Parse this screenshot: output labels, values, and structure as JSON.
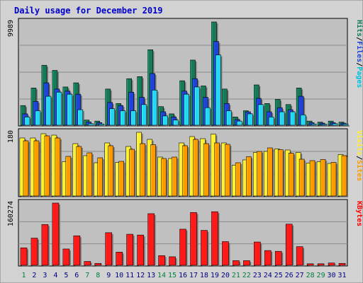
{
  "chart_data": {
    "type": "bar",
    "title": "Daily usage for December 2019",
    "categories": [
      "1",
      "2",
      "3",
      "4",
      "5",
      "6",
      "7",
      "8",
      "9",
      "10",
      "11",
      "12",
      "13",
      "14",
      "15",
      "16",
      "17",
      "18",
      "19",
      "20",
      "21",
      "22",
      "23",
      "24",
      "25",
      "26",
      "27",
      "28",
      "29",
      "30",
      "31"
    ],
    "weekend_days": [
      "1",
      "7",
      "8",
      "14",
      "15",
      "21",
      "22",
      "28",
      "29"
    ],
    "colors": {
      "hits": "#157a55",
      "files": "#1f43d6",
      "pages": "#24d6f2",
      "visits": "#ffee33",
      "sites": "#ff9900",
      "kbytes": "#ff1a1a",
      "plot_bg": "#c0c0c0",
      "frame_bg": "#d2d2d2",
      "title": "#0000cc",
      "weekday_label": "#000080",
      "weekend_label": "#008040"
    },
    "panels": [
      {
        "name": "hits-files-pages",
        "ymax_label": "9989",
        "ylim": [
          0,
          9989
        ],
        "legend": [
          {
            "label": "Pages",
            "color": "#00c0e0"
          },
          {
            "label": "Files",
            "color": "#1f43d6"
          },
          {
            "label": "Hits",
            "color": "#157a55"
          }
        ],
        "series": [
          {
            "name": "Hits",
            "values": [
              1900,
              3600,
              5800,
              5300,
              3700,
              4100,
              500,
              400,
              3500,
              2100,
              4500,
              4700,
              7300,
              1800,
              1100,
              4300,
              6300,
              3800,
              9989,
              3500,
              800,
              1400,
              3900,
              2100,
              2500,
              2000,
              3600,
              400,
              300,
              400,
              300
            ]
          },
          {
            "name": "Files",
            "values": [
              1100,
              2300,
              4100,
              3500,
              3300,
              3000,
              300,
              250,
              2200,
              1900,
              3200,
              2700,
              5000,
              1300,
              800,
              3300,
              4500,
              2700,
              8100,
              2100,
              550,
              1300,
              2600,
              1300,
              1700,
              1500,
              2800,
              250,
              200,
              250,
              200
            ]
          },
          {
            "name": "Pages",
            "values": [
              800,
              1400,
              2800,
              3200,
              3000,
              1500,
              150,
              120,
              1600,
              1400,
              1400,
              2000,
              3400,
              900,
              500,
              3000,
              3700,
              1700,
              6800,
              1400,
              400,
              1100,
              2000,
              800,
              1300,
              1300,
              1000,
              120,
              100,
              150,
              120
            ]
          }
        ]
      },
      {
        "name": "visits-sites",
        "ymax_label": "180",
        "ylim": [
          0,
          180
        ],
        "legend": [
          {
            "label": "Sites",
            "color": "#ff9900"
          },
          {
            "label": "Visits",
            "color": "#ffee33"
          }
        ],
        "series": [
          {
            "name": "Visits",
            "values": [
              164,
              164,
              176,
              172,
              97,
              148,
              114,
              94,
              150,
              95,
              140,
              180,
              160,
              110,
              106,
              150,
              168,
              162,
              175,
              150,
              87,
              102,
              123,
              126,
              133,
              130,
              123,
              93,
              97,
              92,
              117
            ]
          },
          {
            "name": "Sites",
            "values": [
              156,
              156,
              170,
              164,
              112,
              140,
              122,
              108,
              142,
              98,
              132,
              148,
              145,
              106,
              110,
              142,
              160,
              148,
              150,
              146,
              94,
              111,
              126,
              136,
              131,
              121,
              104,
              100,
              103,
              95,
              114
            ]
          }
        ]
      },
      {
        "name": "kbytes",
        "ymax_label": "160274",
        "ylim": [
          0,
          160274
        ],
        "legend": [
          {
            "label": "KBytes",
            "color": "#ff0000"
          }
        ],
        "series": [
          {
            "name": "KBytes",
            "values": [
              45000,
              70000,
              105000,
              160274,
              42000,
              76000,
              10000,
              5000,
              84000,
              34000,
              80000,
              78000,
              133000,
              25000,
              22000,
              93000,
              136000,
              90000,
              138000,
              61000,
              12000,
              12000,
              60000,
              38000,
              36000,
              106000,
              48000,
              4000,
              4000,
              6000,
              5000
            ]
          }
        ]
      }
    ]
  }
}
